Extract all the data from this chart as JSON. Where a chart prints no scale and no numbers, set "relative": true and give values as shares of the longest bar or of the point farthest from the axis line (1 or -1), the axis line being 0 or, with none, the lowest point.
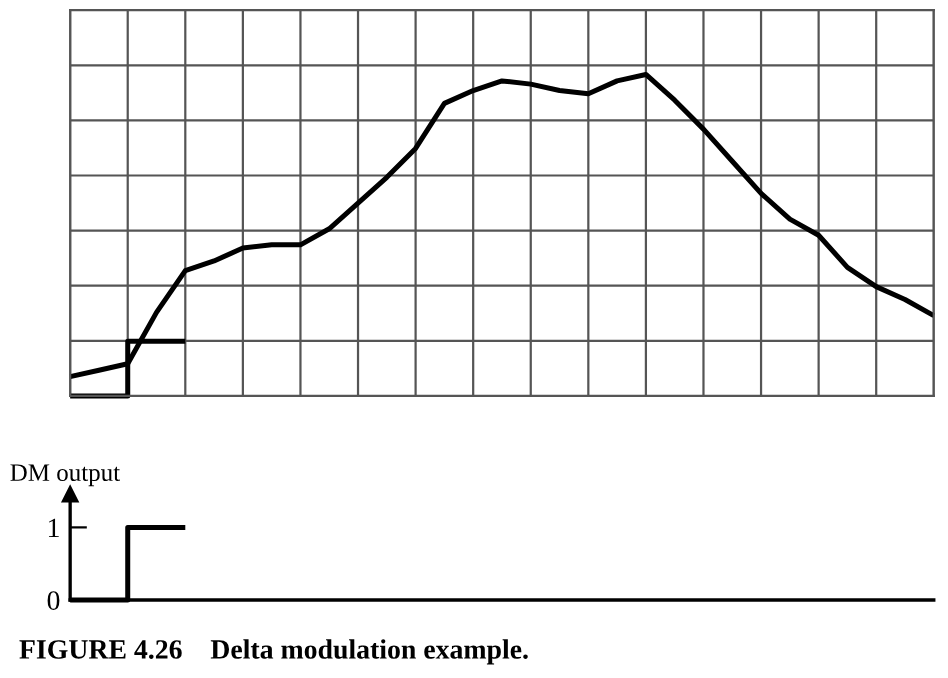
{
  "chart_data": [
    {
      "type": "line",
      "relative": true,
      "categories": [
        null,
        null,
        null,
        null,
        null,
        null,
        null,
        null,
        null,
        null,
        null,
        null,
        null,
        null,
        null,
        null,
        null,
        null,
        null,
        null,
        null,
        null,
        null,
        null,
        null,
        null,
        null,
        null,
        null,
        null,
        null
      ],
      "grid": true,
      "tick_labels": false,
      "series": [
        {
          "type": "line",
          "color": "#000000",
          "values": [
            0.06,
            0.08,
            0.1,
            0.26,
            0.39,
            0.42,
            0.46,
            0.47,
            0.47,
            0.52,
            0.6,
            0.68,
            0.77,
            0.91,
            0.95,
            0.98,
            0.97,
            0.95,
            0.94,
            0.98,
            1,
            0.92,
            0.83,
            0.73,
            0.63,
            0.55,
            0.5,
            0.4,
            0.34,
            0.3,
            0.25
          ]
        },
        {
          "type": "step",
          "color": "#000000",
          "values": [
            0,
            0,
            0.17,
            0.17,
            0.17,
            null,
            null,
            null,
            null,
            null,
            null,
            null,
            null,
            null,
            null,
            null,
            null,
            null,
            null,
            null,
            null,
            null,
            null,
            null,
            null,
            null,
            null,
            null,
            null,
            null,
            null
          ]
        }
      ]
    },
    {
      "type": "step",
      "ylabel": "DM output",
      "categories": [
        null,
        null,
        null,
        null,
        null,
        null,
        null,
        null,
        null,
        null,
        null,
        null,
        null,
        null,
        null,
        null,
        null,
        null,
        null,
        null,
        null,
        null,
        null,
        null,
        null,
        null,
        null,
        null,
        null,
        null,
        null
      ],
      "ylim": [
        0,
        1.4
      ],
      "yticks": [
        0,
        1
      ],
      "tick_labels": "y",
      "series": [
        {
          "color": "#000000",
          "values": [
            0,
            0,
            1,
            1,
            1,
            null,
            null,
            null,
            null,
            null,
            null,
            null,
            null,
            null,
            null,
            null,
            null,
            null,
            null,
            null,
            null,
            null,
            null,
            null,
            null,
            null,
            null,
            null,
            null,
            null,
            null
          ]
        }
      ],
      "annotations": [
        "FIGURE 4.26    Delta modulation example."
      ]
    }
  ]
}
